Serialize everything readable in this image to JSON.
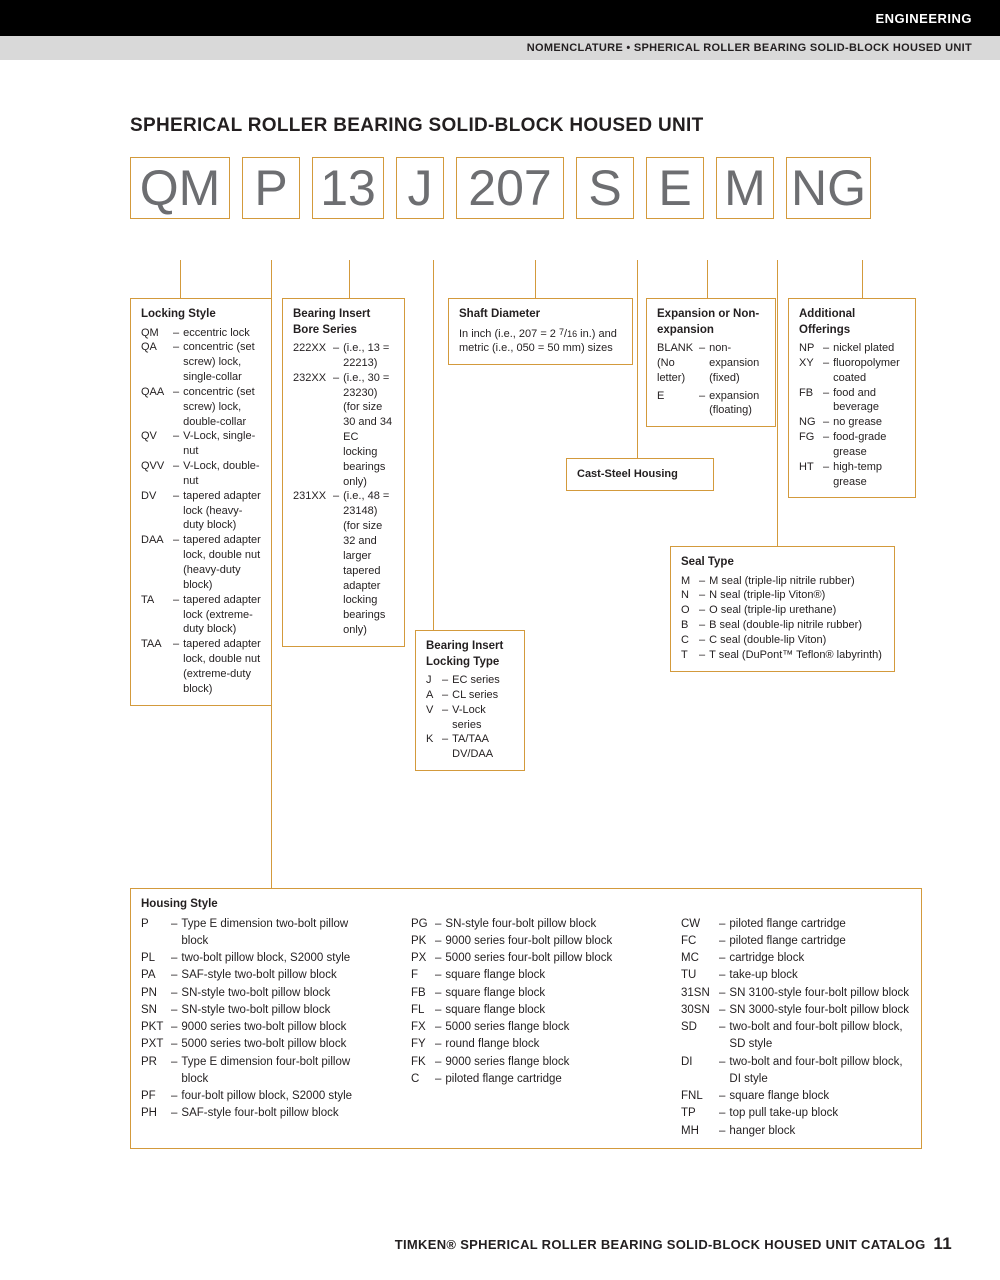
{
  "header": {
    "category": "ENGINEERING",
    "breadcrumb": "NOMENCLATURE • SPHERICAL ROLLER BEARING SOLID-BLOCK HOUSED UNIT"
  },
  "title": "SPHERICAL ROLLER BEARING SOLID-BLOCK HOUSED UNIT",
  "code_parts": [
    "QM",
    "P",
    "13",
    "J",
    "207",
    "S",
    "E",
    "M",
    "NG"
  ],
  "locking_style": {
    "title": "Locking Style",
    "items": [
      {
        "c": "QM",
        "d": "eccentric lock"
      },
      {
        "c": "QA",
        "d": "concentric (set screw) lock, single-collar"
      },
      {
        "c": "QAA",
        "d": "concentric (set screw) lock, double-collar"
      },
      {
        "c": "QV",
        "d": "V-Lock, single-nut"
      },
      {
        "c": "QVV",
        "d": "V-Lock, double-nut"
      },
      {
        "c": "DV",
        "d": "tapered adapter lock (heavy-duty block)"
      },
      {
        "c": "DAA",
        "d": "tapered adapter lock, double nut (heavy-duty block)"
      },
      {
        "c": "TA",
        "d": "tapered adapter lock (extreme-duty block)"
      },
      {
        "c": "TAA",
        "d": "tapered adapter lock, double nut (extreme-duty block)"
      }
    ]
  },
  "bearing_insert": {
    "title": "Bearing Insert Bore Series",
    "items": [
      {
        "c": "222XX",
        "d": "(i.e., 13 = 22213)"
      },
      {
        "c": "232XX",
        "d": "(i.e., 30 = 23230) (for size 30 and 34 EC locking bearings only)"
      },
      {
        "c": "231XX",
        "d": "(i.e., 48 = 23148) (for size 32 and larger tapered adapter locking bearings only)"
      }
    ]
  },
  "locking_type": {
    "title": "Bearing Insert Locking Type",
    "items": [
      {
        "c": "J",
        "d": "EC series"
      },
      {
        "c": "A",
        "d": "CL series"
      },
      {
        "c": "V",
        "d": "V-Lock series"
      },
      {
        "c": "K",
        "d": "TA/TAA DV/DAA"
      }
    ]
  },
  "shaft_diameter": {
    "title": "Shaft Diameter",
    "text": "In inch (i.e., 207 = 2 ⁷⁄₁₆ in.) and metric (i.e., 050 = 50 mm) sizes"
  },
  "cast_steel": "Cast-Steel Housing",
  "expansion": {
    "title": "Expansion or Non-expansion",
    "items": [
      {
        "c": "BLANK (No letter)",
        "d": "non-expansion (fixed)"
      },
      {
        "c": "E",
        "d": "expansion (floating)"
      }
    ]
  },
  "seal_type": {
    "title": "Seal Type",
    "items": [
      {
        "c": "M",
        "d": "M seal (triple-lip nitrile rubber)"
      },
      {
        "c": "N",
        "d": "N seal (triple-lip Viton®)"
      },
      {
        "c": "O",
        "d": "O seal (triple-lip urethane)"
      },
      {
        "c": "B",
        "d": "B seal (double-lip nitrile rubber)"
      },
      {
        "c": "C",
        "d": "C seal (double-lip Viton)"
      },
      {
        "c": "T",
        "d": "T seal (DuPont™ Teflon® labyrinth)"
      }
    ]
  },
  "additional": {
    "title": "Additional Offerings",
    "items": [
      {
        "c": "NP",
        "d": "nickel plated"
      },
      {
        "c": "XY",
        "d": "fluoropolymer coated"
      },
      {
        "c": "FB",
        "d": "food and beverage"
      },
      {
        "c": "NG",
        "d": "no grease"
      },
      {
        "c": "FG",
        "d": "food-grade grease"
      },
      {
        "c": "HT",
        "d": "high-temp grease"
      }
    ]
  },
  "housing_style": {
    "title": "Housing Style",
    "col1": [
      {
        "c": "P",
        "d": "Type E dimension two-bolt pillow block"
      },
      {
        "c": "PL",
        "d": "two-bolt pillow block, S2000 style"
      },
      {
        "c": "PA",
        "d": "SAF-style two-bolt pillow block"
      },
      {
        "c": "PN",
        "d": "SN-style two-bolt pillow block"
      },
      {
        "c": "SN",
        "d": "SN-style two-bolt pillow block"
      },
      {
        "c": "PKT",
        "d": "9000 series two-bolt pillow block"
      },
      {
        "c": "PXT",
        "d": "5000 series two-bolt pillow block"
      },
      {
        "c": "PR",
        "d": "Type E dimension four-bolt pillow block"
      },
      {
        "c": "PF",
        "d": "four-bolt pillow block, S2000 style"
      },
      {
        "c": "PH",
        "d": "SAF-style four-bolt pillow block"
      }
    ],
    "col2": [
      {
        "c": "PG",
        "d": "SN-style four-bolt pillow block"
      },
      {
        "c": "PK",
        "d": "9000 series four-bolt pillow block"
      },
      {
        "c": "PX",
        "d": "5000 series four-bolt pillow block"
      },
      {
        "c": "F",
        "d": "square flange block"
      },
      {
        "c": "FB",
        "d": "square flange block"
      },
      {
        "c": "FL",
        "d": "square flange block"
      },
      {
        "c": "FX",
        "d": "5000 series flange block"
      },
      {
        "c": "FY",
        "d": "round flange block"
      },
      {
        "c": "FK",
        "d": "9000 series flange block"
      },
      {
        "c": "C",
        "d": "piloted flange cartridge"
      }
    ],
    "col3": [
      {
        "c": "CW",
        "d": "piloted flange cartridge"
      },
      {
        "c": "FC",
        "d": "piloted flange cartridge"
      },
      {
        "c": "MC",
        "d": "cartridge block"
      },
      {
        "c": "TU",
        "d": "take-up block"
      },
      {
        "c": "31SN",
        "d": "SN 3100-style four-bolt pillow block"
      },
      {
        "c": "30SN",
        "d": "SN 3000-style four-bolt pillow block"
      },
      {
        "c": "SD",
        "d": "two-bolt and four-bolt pillow block, SD style"
      },
      {
        "c": "DI",
        "d": "two-bolt and four-bolt pillow block, DI style"
      },
      {
        "c": "FNL",
        "d": "square flange block"
      },
      {
        "c": "TP",
        "d": "top pull take-up block"
      },
      {
        "c": "MH",
        "d": "hanger block"
      }
    ]
  },
  "footer": {
    "brand": "TIMKEN®",
    "text": "SPHERICAL ROLLER BEARING SOLID-BLOCK HOUSED UNIT CATALOG",
    "page": "11"
  },
  "colors": {
    "accent": "#d39a3c",
    "text": "#231f20",
    "code_text": "#6d6e71",
    "subbar_bg": "#d9d9d9"
  }
}
